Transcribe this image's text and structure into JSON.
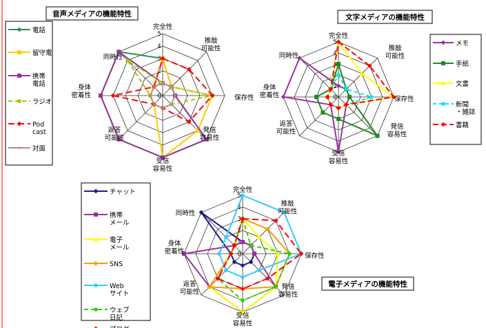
{
  "chart_data": [
    {
      "type": "radar",
      "title": "音声メディアの機能特性",
      "axes": [
        "完全性",
        "推敲\n可能性",
        "保存性",
        "発信\n容易性",
        "受信\n容易性",
        "返答\n可能性",
        "身体\n密着性",
        "同時性"
      ],
      "ticks": [
        "0",
        "1",
        "2",
        "3",
        "4",
        "5"
      ],
      "range": [
        0,
        5
      ],
      "series": [
        {
          "name": "電話",
          "color": "#2e8b57",
          "marker": "diamond",
          "dash": "",
          "values": [
            3,
            1,
            1,
            5,
            5,
            5,
            5,
            5
          ]
        },
        {
          "name": "留守電",
          "color": "#ffcc00",
          "marker": "square",
          "dash": "",
          "values": [
            3,
            1,
            4,
            4,
            5,
            1,
            1,
            1
          ]
        },
        {
          "name": "携帯\n電話",
          "color": "#993399",
          "marker": "square",
          "dash": "",
          "values": [
            1,
            1,
            1,
            5,
            5,
            5,
            5,
            5
          ]
        },
        {
          "name": "ラジオ",
          "color": "#99cc00",
          "marker": "circle",
          "dash": "6 4",
          "values": [
            1,
            1,
            4,
            1,
            1,
            1,
            1,
            4
          ]
        },
        {
          "name": "Pod\ncast",
          "color": "#ff0000",
          "marker": "diamond",
          "dash": "9 5",
          "values": [
            3,
            3,
            4,
            3,
            1,
            1,
            4,
            1
          ]
        },
        {
          "name": "対面",
          "color": "#b58c8c",
          "marker": "dot",
          "dash": "",
          "values": [
            1,
            1,
            1,
            1,
            1,
            1,
            1,
            1
          ]
        }
      ]
    },
    {
      "type": "radar",
      "title": "文字メディアの機能特性",
      "axes": [
        "完全性",
        "推敲\n可能性",
        "保存性",
        "発信\n容易性",
        "受信\n容易性",
        "返答\n可能性",
        "身体\n密着性",
        "同時性"
      ],
      "ticks": [
        "0",
        "1",
        "2",
        "3",
        "4",
        "5"
      ],
      "range": [
        0,
        5
      ],
      "series": [
        {
          "name": "メモ",
          "color": "#993399",
          "marker": "diamond",
          "dash": "",
          "values": [
            1,
            1,
            1,
            1,
            5,
            1,
            5,
            5
          ]
        },
        {
          "name": "手紙",
          "color": "#228822",
          "marker": "square",
          "dash": "",
          "values": [
            3,
            1,
            1,
            5,
            2,
            2,
            2,
            1
          ]
        },
        {
          "name": "文書",
          "color": "#ffff00",
          "marker": "triangle",
          "dash": "",
          "values": [
            5,
            3,
            5,
            1,
            1,
            1,
            1,
            1
          ]
        },
        {
          "name": "新聞\n・雑誌",
          "color": "#00e5ee",
          "marker": "circle",
          "dash": "5 4",
          "values": [
            2,
            1,
            3,
            1,
            1,
            1,
            1,
            1
          ]
        },
        {
          "name": "書籍",
          "color": "#ff0000",
          "marker": "diamond",
          "dash": "8 4",
          "values": [
            5,
            4,
            5,
            1,
            1,
            1,
            1,
            1
          ]
        }
      ]
    },
    {
      "type": "radar",
      "title": "電子メディアの機能特性",
      "axes": [
        "完全性",
        "推敲\n可能性",
        "保存性",
        "発信\n容易性",
        "受信\n容易性",
        "返答\n可能性",
        "身体\n密着性",
        "同時性"
      ],
      "ticks": [
        "0",
        "1",
        "2",
        "3",
        "4",
        "5"
      ],
      "range": [
        0,
        5
      ],
      "series": [
        {
          "name": "チャット",
          "color": "#1a1a8c",
          "marker": "diamond",
          "dash": "",
          "values": [
            1,
            1,
            1,
            1,
            1,
            1,
            1,
            5
          ]
        },
        {
          "name": "携帯\nメール",
          "color": "#993399",
          "marker": "square",
          "dash": "",
          "values": [
            1,
            1,
            1,
            4,
            5,
            4,
            5,
            1
          ]
        },
        {
          "name": "電子\nメール",
          "color": "#ffff00",
          "marker": "triangle",
          "dash": "",
          "values": [
            3,
            2,
            3,
            4,
            5,
            4,
            1,
            1
          ]
        },
        {
          "name": "SNS",
          "color": "#ff9900",
          "marker": "diamond",
          "dash": "",
          "values": [
            3,
            3,
            4,
            4,
            3,
            4,
            1,
            1
          ]
        },
        {
          "name": "Web\nサイト",
          "color": "#33ccff",
          "marker": "circle",
          "dash": "",
          "values": [
            5,
            5,
            5,
            2,
            2,
            2,
            2,
            2
          ]
        },
        {
          "name": "ウェブ\n日記",
          "color": "#33cc00",
          "marker": "circle",
          "dash": "6 4",
          "values": [
            3,
            1,
            4,
            4,
            4,
            3,
            1,
            1
          ]
        },
        {
          "name": "ブログ",
          "color": "#ff0000",
          "marker": "diamond",
          "dash": "9 5",
          "values": [
            3,
            4,
            5,
            3,
            3,
            3,
            1,
            1
          ]
        }
      ]
    }
  ]
}
